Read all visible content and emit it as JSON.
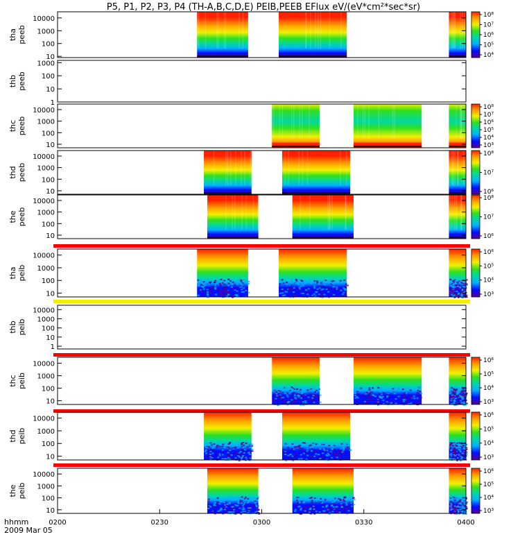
{
  "title": "P5, P1, P2, P3, P4 (TH-A,B,C,D,E) PEIB,PEEB EFlux eV/(eV*cm²*sec*sr)",
  "footer": {
    "time_label": "hhmm",
    "date_label": "2009 Mar 05"
  },
  "chart_data": {
    "type": "heatmap",
    "title": "P5, P1, P2, P3, P4 (TH-A,B,C,D,E) PEIB,PEEB EFlux eV/(eV*cm²*sec*sr)",
    "xlabel": "hhmm",
    "date": "2009 Mar 05",
    "x_unit": "minutes from 02:00 UT",
    "x_range": [
      0,
      120
    ],
    "x_ticks": [
      "0200",
      "0230",
      "0300",
      "0330",
      "0400"
    ],
    "colorscale": [
      "#5a0090",
      "#0010ff",
      "#00b0ff",
      "#00d8a0",
      "#30e020",
      "#f0f000",
      "#ffa000",
      "#ff2000"
    ],
    "panels": [
      {
        "id": "tha-peeb",
        "label": [
          "tha",
          "peeb"
        ],
        "y_ticks": [
          "10000",
          "1000",
          "100",
          "10"
        ],
        "ylog": [
          8,
          30000
        ],
        "intervals": [
          [
            41,
            56
          ],
          [
            65,
            85
          ],
          [
            115,
            120
          ]
        ],
        "cbar_ticks": [
          "10⁸",
          "10⁷",
          "10⁶",
          "10⁵",
          "10⁴"
        ],
        "profile": "electron",
        "bar": null
      },
      {
        "id": "thb-peeb",
        "label": [
          "thb",
          "peeb"
        ],
        "y_ticks": [
          "1000",
          "100",
          "10",
          "1"
        ],
        "ylog": [
          1,
          1500
        ],
        "intervals": [],
        "cbar_ticks": [],
        "profile": "none",
        "bar": null
      },
      {
        "id": "thc-peeb",
        "label": [
          "thc",
          "peeb"
        ],
        "y_ticks": [
          "10000",
          "1000",
          "100",
          "10"
        ],
        "ylog": [
          5,
          30000
        ],
        "intervals": [
          [
            63,
            77
          ],
          [
            87,
            107
          ],
          [
            115,
            120
          ]
        ],
        "cbar_ticks": [
          "10⁸",
          "10⁷",
          "10⁶",
          "10⁵",
          "10⁴",
          "10³"
        ],
        "profile": "electron-c",
        "bar": null
      },
      {
        "id": "thd-peeb",
        "label": [
          "thd",
          "peeb"
        ],
        "y_ticks": [
          "10000",
          "1000",
          "100",
          "10"
        ],
        "ylog": [
          5,
          30000
        ],
        "intervals": [
          [
            43,
            57
          ],
          [
            66,
            86
          ],
          [
            115,
            120
          ]
        ],
        "cbar_ticks": [
          "10⁸",
          "10⁷",
          "10⁶"
        ],
        "profile": "electron",
        "bar": null
      },
      {
        "id": "the-peeb",
        "label": [
          "the",
          "peeb"
        ],
        "y_ticks": [
          "10000",
          "1000",
          "100",
          "10"
        ],
        "ylog": [
          5,
          30000
        ],
        "intervals": [
          [
            44,
            59
          ],
          [
            69,
            87
          ],
          [
            115,
            120
          ]
        ],
        "cbar_ticks": [
          "10⁸",
          "10⁷",
          "10⁶"
        ],
        "profile": "electron",
        "bar": "#ff0000"
      },
      {
        "id": "tha-peib",
        "label": [
          "tha",
          "peib"
        ],
        "y_ticks": [
          "10000",
          "1000",
          "100",
          "10"
        ],
        "ylog": [
          5,
          30000
        ],
        "intervals": [
          [
            41,
            56
          ],
          [
            65,
            85
          ],
          [
            115,
            120
          ]
        ],
        "cbar_ticks": [
          "10⁶",
          "10⁵",
          "10⁴",
          "10³"
        ],
        "profile": "ion",
        "bar": "#f0f000"
      },
      {
        "id": "thb-peib",
        "label": [
          "thb",
          "peib"
        ],
        "y_ticks": [
          "10000",
          "1000",
          "100",
          "10",
          "1"
        ],
        "ylog": [
          0.5,
          30000
        ],
        "intervals": [],
        "cbar_ticks": [],
        "profile": "none",
        "bar": "#ff0000"
      },
      {
        "id": "thc-peib",
        "label": [
          "thc",
          "peib"
        ],
        "y_ticks": [
          "10000",
          "1000",
          "100",
          "10"
        ],
        "ylog": [
          5,
          30000
        ],
        "intervals": [
          [
            63,
            77
          ],
          [
            87,
            107
          ],
          [
            115,
            120
          ]
        ],
        "cbar_ticks": [
          "10⁶",
          "10⁵",
          "10⁴",
          "10³"
        ],
        "profile": "ion",
        "bar": "#ff0000"
      },
      {
        "id": "thd-peib",
        "label": [
          "thd",
          "peib"
        ],
        "y_ticks": [
          "10000",
          "1000",
          "100",
          "10"
        ],
        "ylog": [
          5,
          30000
        ],
        "intervals": [
          [
            43,
            57
          ],
          [
            66,
            86
          ],
          [
            115,
            120
          ]
        ],
        "cbar_ticks": [
          "10⁶",
          "10⁵",
          "10⁴",
          "10³"
        ],
        "profile": "ion",
        "bar": "#ff0000"
      },
      {
        "id": "the-peib",
        "label": [
          "the",
          "peib"
        ],
        "y_ticks": [
          "10000",
          "1000",
          "100",
          "10"
        ],
        "ylog": [
          5,
          30000
        ],
        "intervals": [
          [
            44,
            59
          ],
          [
            69,
            87
          ],
          [
            115,
            120
          ]
        ],
        "cbar_ticks": [
          "10⁶",
          "10⁵",
          "10⁴",
          "10³"
        ],
        "profile": "ion",
        "bar": null
      }
    ]
  }
}
